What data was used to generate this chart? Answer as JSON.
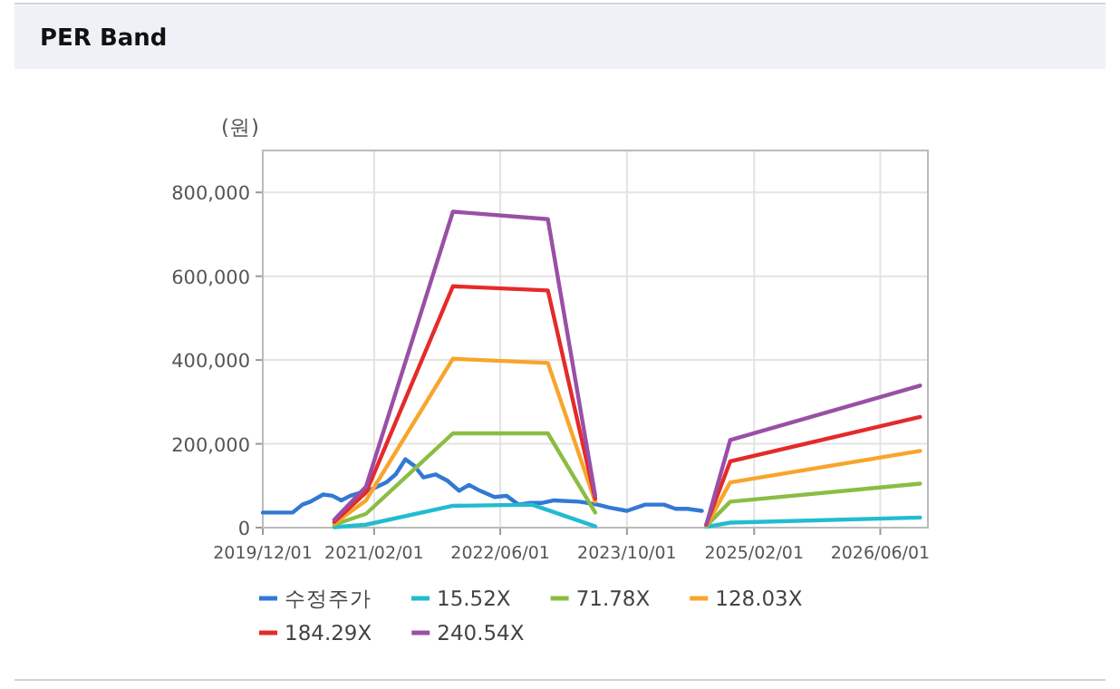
{
  "chart_data": {
    "type": "line",
    "title": "PER Band",
    "ylabel": "(원)",
    "xlim": [
      "2019-12-01",
      "2026-12-01"
    ],
    "xticks": [
      {
        "value": "2019-12-01",
        "label": "2019/12/01"
      },
      {
        "value": "2021-02-01",
        "label": "2021/02/01"
      },
      {
        "value": "2022-06-01",
        "label": "2022/06/01"
      },
      {
        "value": "2023-10-01",
        "label": "2023/10/01"
      },
      {
        "value": "2025-02-01",
        "label": "2025/02/01"
      },
      {
        "value": "2026-06-01",
        "label": "2026/06/01"
      }
    ],
    "ylim": [
      0,
      900000
    ],
    "yticks": [
      {
        "value": 0,
        "label": "0"
      },
      {
        "value": 200000,
        "label": "200,000"
      },
      {
        "value": 400000,
        "label": "400,000"
      },
      {
        "value": 600000,
        "label": "600,000"
      },
      {
        "value": 800000,
        "label": "800,000"
      }
    ],
    "grid": true,
    "legend": "bottom",
    "series": [
      {
        "name": "수정주가",
        "color": "#3279d4",
        "x": [
          "2019-12-01",
          "2020-03-25",
          "2020-05-01",
          "2020-06-01",
          "2020-07-20",
          "2020-08-25",
          "2020-09-28",
          "2020-11-01",
          "2020-12-15",
          "2021-02-01",
          "2021-03-20",
          "2021-04-25",
          "2021-06-01",
          "2021-07-05",
          "2021-08-10",
          "2021-09-25",
          "2021-11-10",
          "2021-12-25",
          "2022-02-01",
          "2022-03-15",
          "2022-05-10",
          "2022-06-25",
          "2022-08-10",
          "2022-09-25",
          "2022-11-10",
          "2022-12-25",
          "2023-04-01",
          "2023-06-10",
          "2023-07-25",
          "2023-10-01",
          "2023-12-10",
          "2024-02-20",
          "2024-04-05",
          "2024-05-20",
          "2024-07-15"
        ],
        "values": [
          36000,
          36000,
          55000,
          62000,
          79000,
          76000,
          65000,
          76000,
          84000,
          94000,
          108000,
          127000,
          163000,
          148000,
          120000,
          127000,
          112000,
          88000,
          102000,
          88000,
          73000,
          76000,
          55000,
          59000,
          59000,
          65000,
          62000,
          55000,
          48000,
          40000,
          55000,
          55000,
          45000,
          45000,
          40000
        ]
      },
      {
        "name": "15.52X",
        "color": "#22bcd0",
        "x": [
          "2020-09-01",
          "2021-01-01",
          "2021-12-01",
          "2022-10-01",
          "2023-06-01",
          "2024-01-01",
          "2024-08-01",
          "2024-11-01",
          "2026-11-01"
        ],
        "values": [
          1000,
          7000,
          52000,
          55000,
          3000,
          null,
          2000,
          12000,
          24000
        ]
      },
      {
        "name": "71.78X",
        "color": "#8bbd45",
        "x": [
          "2020-09-01",
          "2021-01-01",
          "2021-12-01",
          "2022-12-01",
          "2023-06-01",
          "2024-01-01",
          "2024-08-01",
          "2024-11-01",
          "2026-11-01"
        ],
        "values": [
          7000,
          33000,
          225000,
          225000,
          36000,
          null,
          4000,
          62000,
          105000
        ]
      },
      {
        "name": "128.03X",
        "color": "#f8a52c",
        "x": [
          "2020-09-01",
          "2021-01-01",
          "2021-12-01",
          "2022-12-01",
          "2023-06-01",
          "2024-01-01",
          "2024-08-01",
          "2024-11-01",
          "2026-11-01"
        ],
        "values": [
          10000,
          65000,
          403000,
          393000,
          62000,
          null,
          4000,
          108000,
          183000
        ]
      },
      {
        "name": "184.29X",
        "color": "#e52a2a",
        "x": [
          "2020-09-01",
          "2021-01-01",
          "2021-12-01",
          "2022-12-01",
          "2023-06-01",
          "2024-01-01",
          "2024-08-01",
          "2024-11-01",
          "2026-11-01"
        ],
        "values": [
          14000,
          84000,
          576000,
          566000,
          69000,
          null,
          7000,
          158000,
          264000
        ]
      },
      {
        "name": "240.54X",
        "color": "#9a4fa6",
        "x": [
          "2020-09-01",
          "2021-01-01",
          "2021-12-01",
          "2022-12-01",
          "2023-06-01",
          "2024-01-01",
          "2024-08-01",
          "2024-11-01",
          "2026-11-01"
        ],
        "values": [
          19000,
          98000,
          754000,
          736000,
          76000,
          null,
          7000,
          209000,
          339000
        ]
      }
    ]
  }
}
